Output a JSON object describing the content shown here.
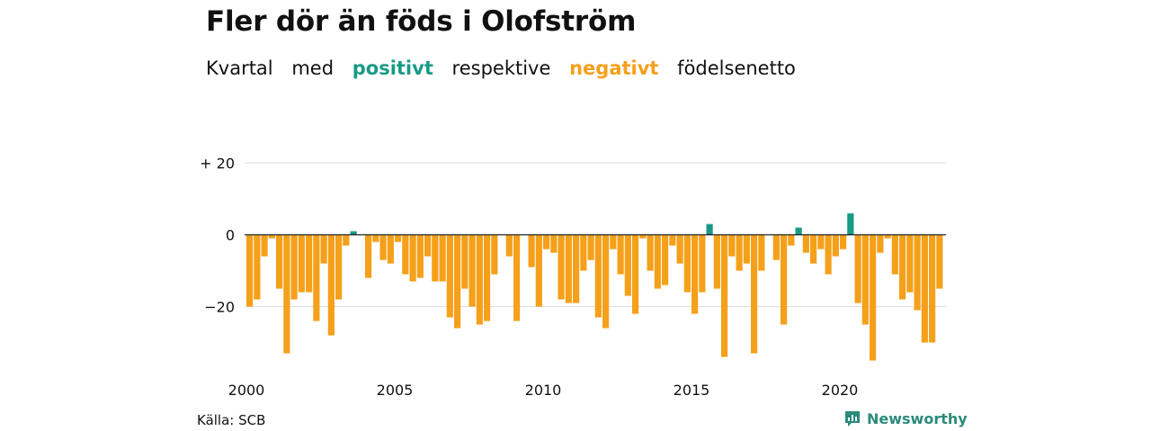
{
  "header": {
    "title": "Fler dör än föds i Olofström",
    "subtitle": {
      "parts": [
        "Kvartal",
        "med",
        "positivt",
        "respektive",
        "negativt",
        "födelsenetto"
      ]
    }
  },
  "footer": {
    "source": "Källa: SCB",
    "brand": "Newsworthy"
  },
  "colors": {
    "positive": "#1a9a85",
    "negative": "#f5a01a",
    "grid": "#dddddd",
    "baseline": "#222222"
  },
  "chart_data": {
    "type": "bar",
    "title": "Fler dör än föds i Olofström",
    "subtitle": "Kvartal med positivt respektive negativt födelsenetto",
    "xlabel": "",
    "ylabel": "",
    "x_start": "2000 Q1",
    "x_ticks": [
      "2000",
      "2005",
      "2010",
      "2015",
      "2020"
    ],
    "y_ticks": [
      "+ 20",
      "0",
      "−20"
    ],
    "ylim": [
      -36,
      21
    ],
    "grid": true,
    "legend": "none",
    "series": [
      {
        "values": [
          -20,
          -18,
          -6,
          -1,
          -15,
          -33,
          -18,
          -16,
          -16,
          -24,
          -8,
          -28,
          -18,
          -3,
          1,
          0,
          -12,
          -2,
          -7,
          -8,
          -2,
          -11,
          -13,
          -12,
          -6,
          -13,
          -13,
          -23,
          -26,
          -15,
          -20,
          -25,
          -24,
          -11,
          0,
          -6,
          -24,
          0,
          -9,
          -20,
          -4,
          -5,
          -18,
          -19,
          -19,
          -10,
          -7,
          -23,
          -26,
          -4,
          -11,
          -17,
          -22,
          -1,
          -10,
          -15,
          -14,
          -3,
          -8,
          -16,
          -22,
          -16,
          3,
          -15,
          -34,
          -6,
          -10,
          -8,
          -33,
          -10,
          0,
          -7,
          -25,
          -3,
          2,
          -5,
          -8,
          -4,
          -11,
          -6,
          -4,
          6,
          -19,
          -25,
          -35,
          -5,
          -1,
          -11,
          -18,
          -16,
          -21,
          -30,
          -30,
          -15
        ]
      }
    ]
  }
}
